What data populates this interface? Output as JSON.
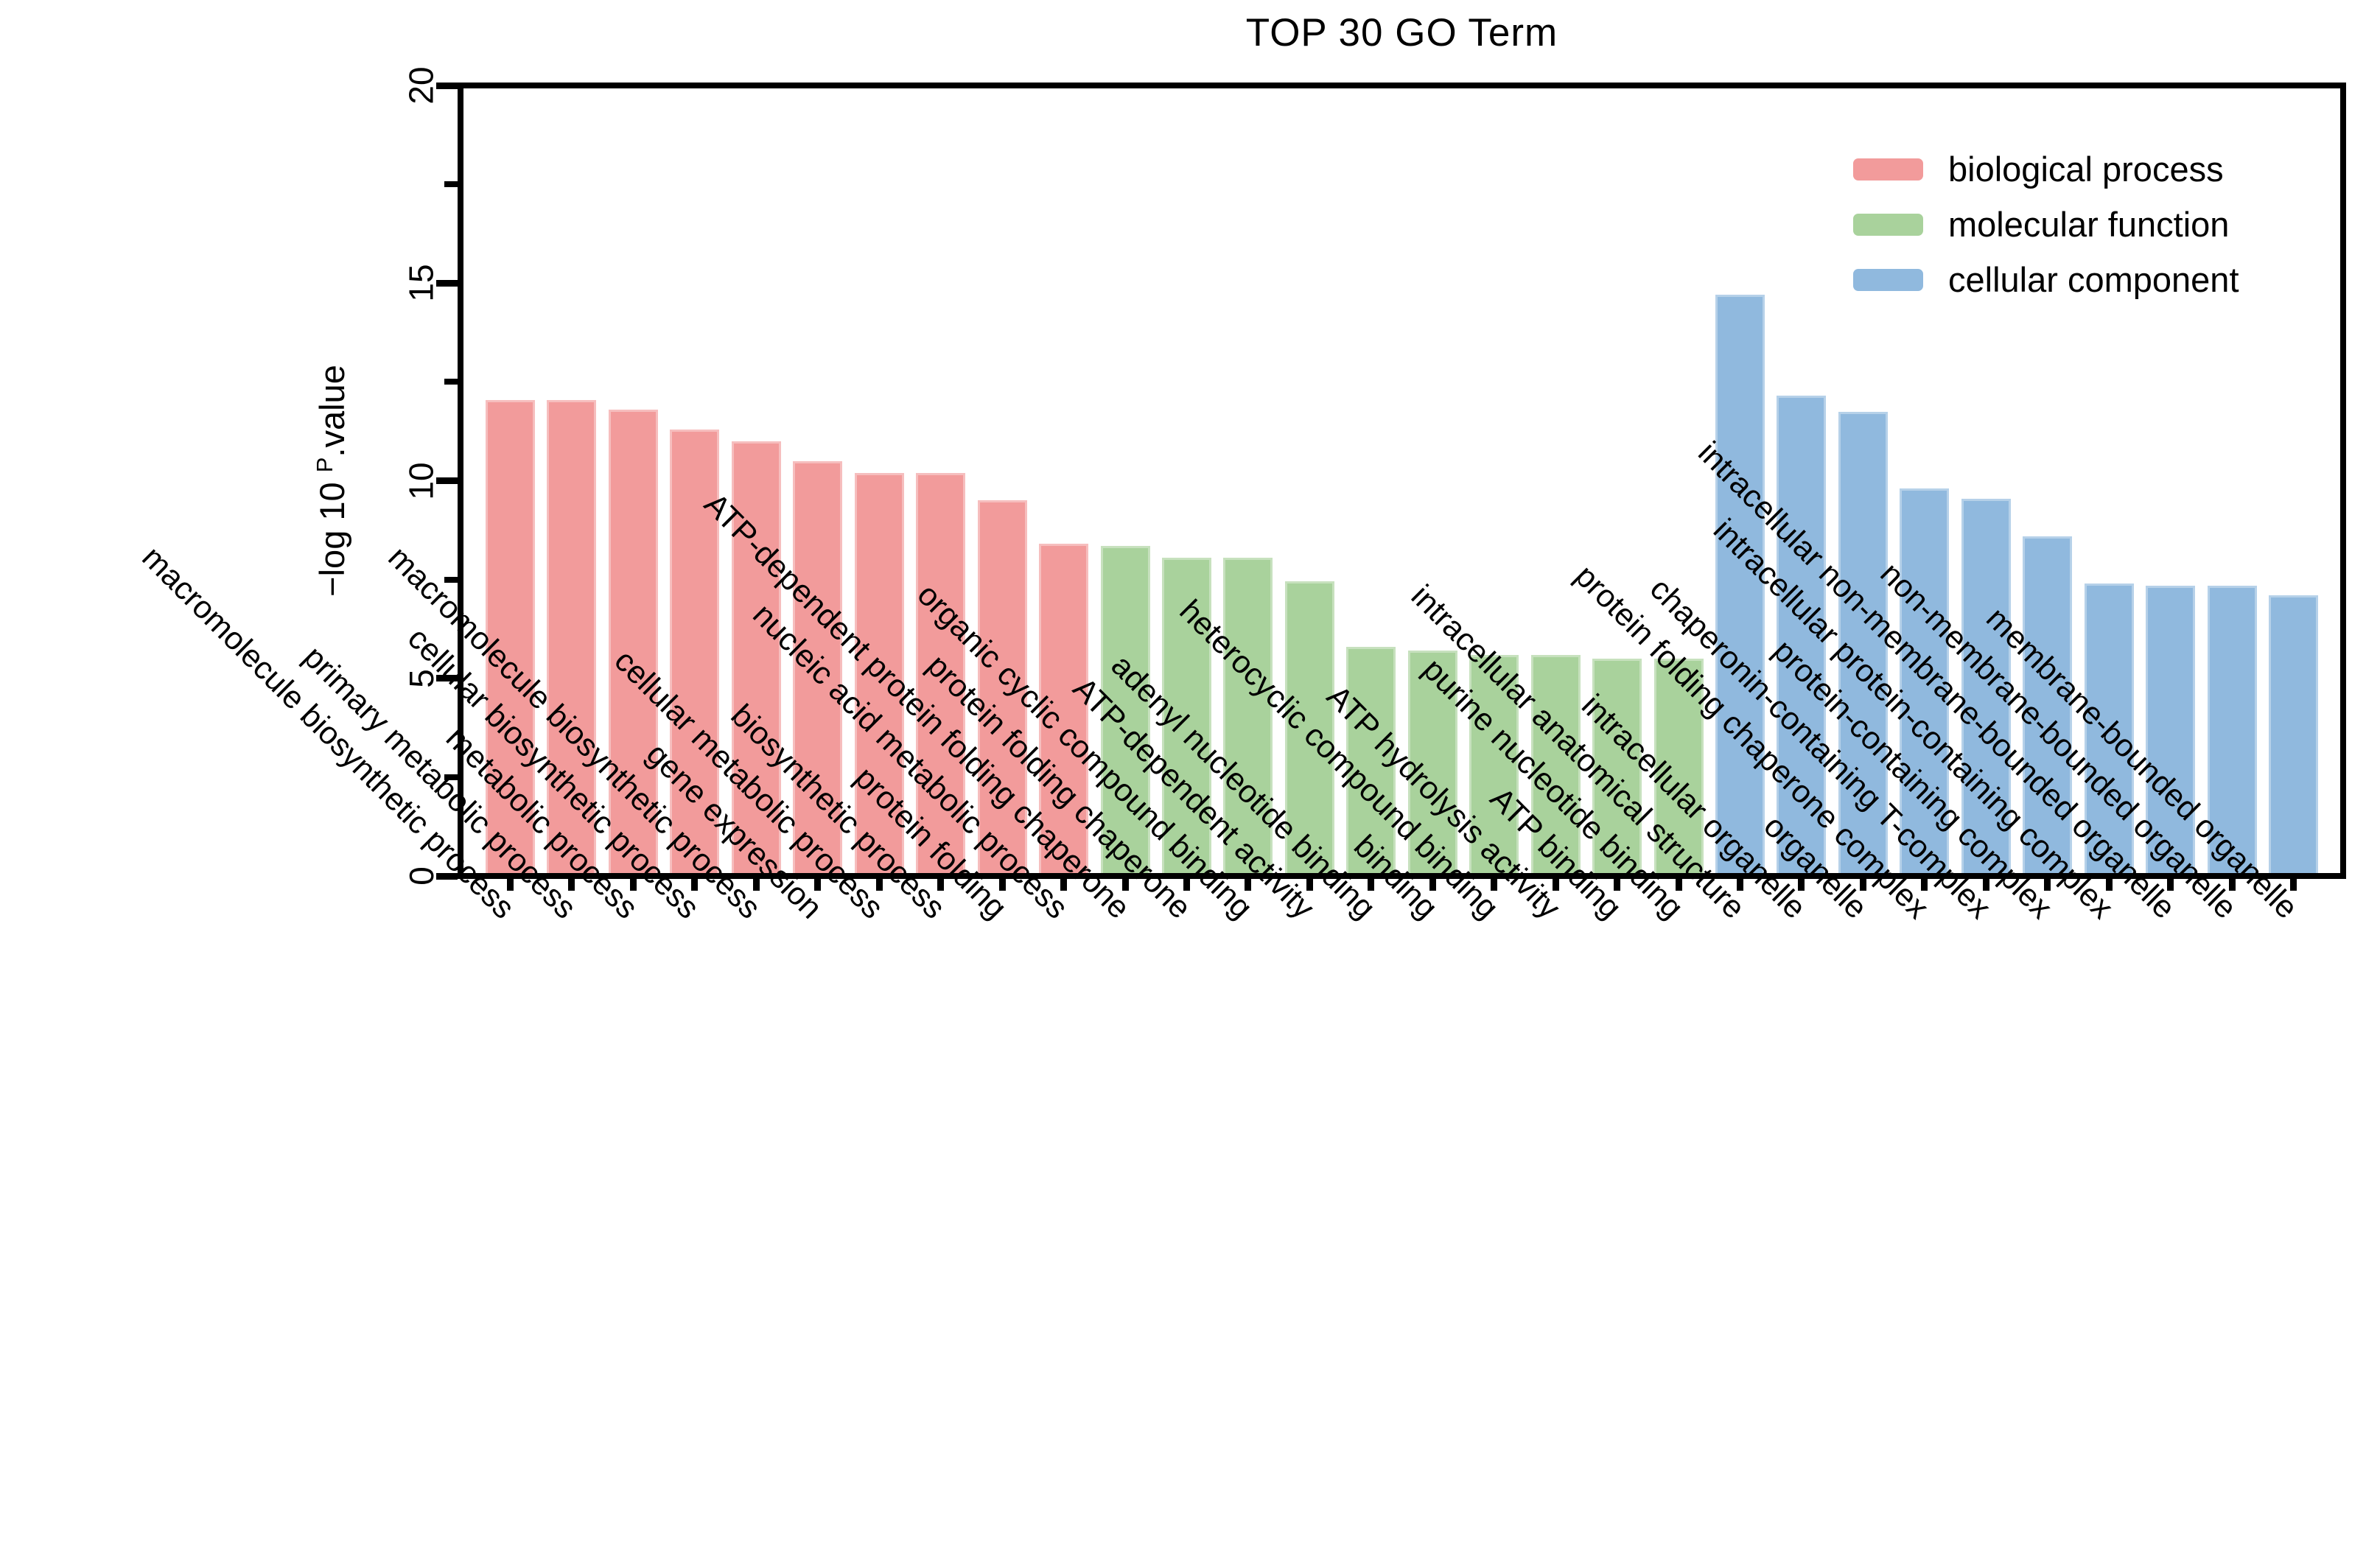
{
  "title": "TOP 30 GO Term",
  "y_axis": {
    "label_prefix": "−log 10 ",
    "label_sup": "P",
    "label_suffix": ".value",
    "ticks": [
      0,
      5,
      10,
      15,
      20
    ],
    "minor_ticks": [
      2.5,
      7.5,
      12.5,
      17.5
    ],
    "max": 20
  },
  "legend": [
    {
      "label": "biological process",
      "color": "#F29B9B"
    },
    {
      "label": "molecular function",
      "color": "#A9D29C"
    },
    {
      "label": "cellular component",
      "color": "#90B9DE"
    }
  ],
  "chart_data": {
    "type": "bar",
    "title": "TOP 30 GO Term",
    "xlabel": "",
    "ylabel": "−log 10 P.value",
    "ylim": [
      0,
      20
    ],
    "grid": false,
    "legend_position": "top-right",
    "groups": [
      {
        "name": "biological process",
        "color": "#F29B9B",
        "categories": [
          "macromolecule biosynthetic process",
          "primary metabolic process",
          "metabolic process",
          "cellular biosynthetic process",
          "macromolecule biosynthetic process",
          "gene expression",
          "cellular metabolic process",
          "biosynthetic process",
          "protein folding",
          "nucleic acid metabolic process"
        ],
        "values": [
          12.05,
          12.05,
          11.8,
          11.3,
          11.0,
          10.5,
          10.2,
          10.2,
          9.5,
          8.4
        ]
      },
      {
        "name": "molecular function",
        "color": "#A9D29C",
        "categories": [
          "ATP-dependent protein folding chaperone",
          "protein folding chaperone",
          "organic cyclic compound binding",
          "ATP-dependent activity",
          "adenyl nucleotide binding",
          "binding",
          "heterocyclic compound binding",
          "ATP hydrolysis activity",
          "ATP binding",
          "purine nucleotide binding"
        ],
        "values": [
          8.35,
          8.05,
          8.05,
          7.45,
          5.8,
          5.7,
          5.6,
          5.6,
          5.5,
          5.5
        ]
      },
      {
        "name": "cellular component",
        "color": "#90B9DE",
        "categories": [
          "intracellular anatomical structure",
          "intracellular organelle",
          "organelle",
          "protein folding chaperone complex",
          "chaperonin-containing T-complex",
          "protein-containing complex",
          "intracellular protein-containing complex",
          "intracellular non-membrane-bounded organelle",
          "non-membrane-bounded organelle",
          "membrane-bounded organelle"
        ],
        "values": [
          14.7,
          12.15,
          11.75,
          9.8,
          9.55,
          8.6,
          7.4,
          7.35,
          7.35,
          7.1
        ]
      }
    ]
  }
}
